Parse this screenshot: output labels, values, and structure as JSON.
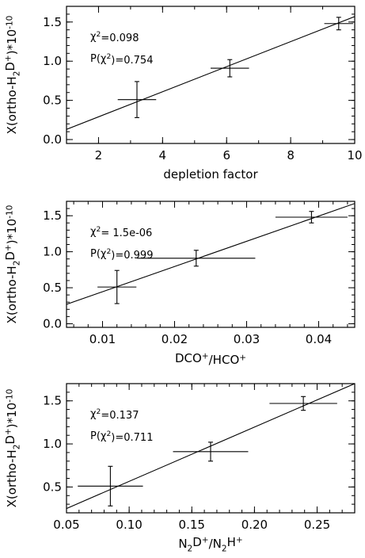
{
  "chart_data": [
    {
      "type": "scatter",
      "title": "",
      "xlabel": "depletion factor",
      "ylabel": "X(ortho-H₂D⁺)*10⁻¹⁰",
      "xlim": [
        1,
        10
      ],
      "ylim": [
        -0.05,
        1.7
      ],
      "x_ticks": [
        "2",
        "4",
        "6",
        "8",
        "10"
      ],
      "y_ticks": [
        "0.0",
        "0.5",
        "1.0",
        "1.5"
      ],
      "grid": false,
      "points": [
        {
          "x": 3.2,
          "y": 0.51,
          "xerr": 0.6,
          "yerr": 0.23
        },
        {
          "x": 6.1,
          "y": 0.91,
          "xerr": 0.6,
          "yerr": 0.11
        },
        {
          "x": 9.5,
          "y": 1.48,
          "xerr": 0.45,
          "yerr": 0.08
        }
      ],
      "fit_line": {
        "x": [
          1,
          10
        ],
        "y": [
          0.13,
          1.57
        ]
      },
      "annotations": [
        "χ²=0.098",
        "P(χ²)=0.754"
      ]
    },
    {
      "type": "scatter",
      "title": "",
      "xlabel": "DCO⁺/HCO⁺",
      "ylabel": "X(ortho-H₂D⁺)*10⁻¹⁰",
      "xlim": [
        0.005,
        0.045
      ],
      "ylim": [
        -0.05,
        1.7
      ],
      "x_ticks": [
        "0.01",
        "0.02",
        "0.03",
        "0.04"
      ],
      "y_ticks": [
        "0.0",
        "0.5",
        "1.0",
        "1.5"
      ],
      "grid": false,
      "points": [
        {
          "x": 0.012,
          "y": 0.51,
          "xerr": 0.0027,
          "yerr": 0.23
        },
        {
          "x": 0.023,
          "y": 0.91,
          "xerr": 0.0082,
          "yerr": 0.11
        },
        {
          "x": 0.039,
          "y": 1.48,
          "xerr": 0.005,
          "yerr": 0.08
        }
      ],
      "fit_line": {
        "x": [
          0.005,
          0.045
        ],
        "y": [
          0.27,
          1.67
        ]
      },
      "annotations": [
        "χ²= 1.5e-06",
        "P(χ²)=0.999"
      ]
    },
    {
      "type": "scatter",
      "title": "",
      "xlabel": "N₂D⁺/N₂H⁺",
      "ylabel": "X(ortho-H₂D⁺)*10⁻¹⁰",
      "xlim": [
        0.05,
        0.28
      ],
      "ylim": [
        0.2,
        1.7
      ],
      "x_ticks": [
        "0.05",
        "0.10",
        "0.15",
        "0.20",
        "0.25"
      ],
      "y_ticks": [
        "0.5",
        "1.0",
        "1.5"
      ],
      "grid": false,
      "points": [
        {
          "x": 0.085,
          "y": 0.51,
          "xerr": 0.026,
          "yerr": 0.23
        },
        {
          "x": 0.165,
          "y": 0.91,
          "xerr": 0.03,
          "yerr": 0.11
        },
        {
          "x": 0.239,
          "y": 1.47,
          "xerr": 0.027,
          "yerr": 0.08
        }
      ],
      "fit_line": {
        "x": [
          0.05,
          0.28
        ],
        "y": [
          0.25,
          1.7
        ]
      },
      "annotations": [
        "χ²=0.137",
        "P(χ²)=0.711"
      ]
    }
  ]
}
